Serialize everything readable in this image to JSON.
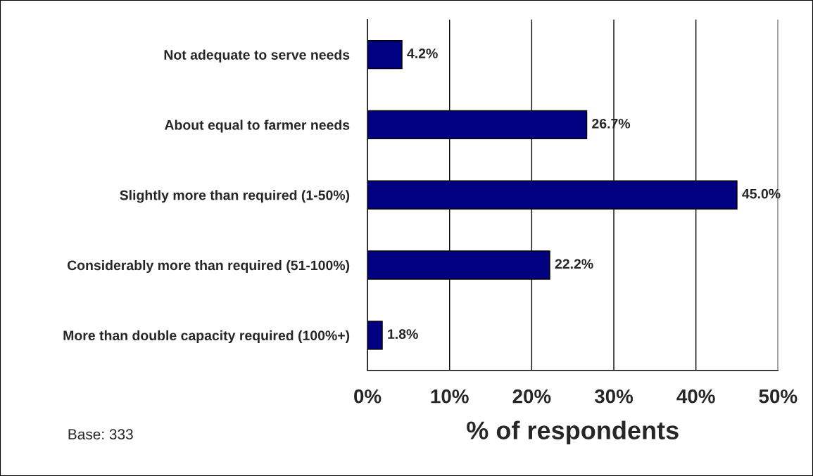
{
  "chart_data": {
    "type": "bar",
    "orientation": "horizontal",
    "xlabel": "% of respondents",
    "categories": [
      "Not adequate to serve needs",
      "About equal to farmer needs",
      "Slightly more than required (1-50%)",
      "Considerably more than required (51-100%)",
      "More than double capacity required (100%+)"
    ],
    "values": [
      4.2,
      26.7,
      45.0,
      22.2,
      1.8
    ],
    "color": "#000080",
    "value_labels": [
      "4.2%",
      "26.7%",
      "45.0%",
      "22.2%",
      "1.8%"
    ],
    "xlim": [
      0,
      50
    ],
    "xticks": [
      {
        "value": 0,
        "label": "0%"
      },
      {
        "value": 10,
        "label": "10%"
      },
      {
        "value": 20,
        "label": "20%"
      },
      {
        "value": 30,
        "label": "30%"
      },
      {
        "value": 40,
        "label": "40%"
      },
      {
        "value": 50,
        "label": "50%"
      }
    ],
    "grid": "x",
    "legend": false,
    "annotations": [
      "Base: 333"
    ]
  }
}
